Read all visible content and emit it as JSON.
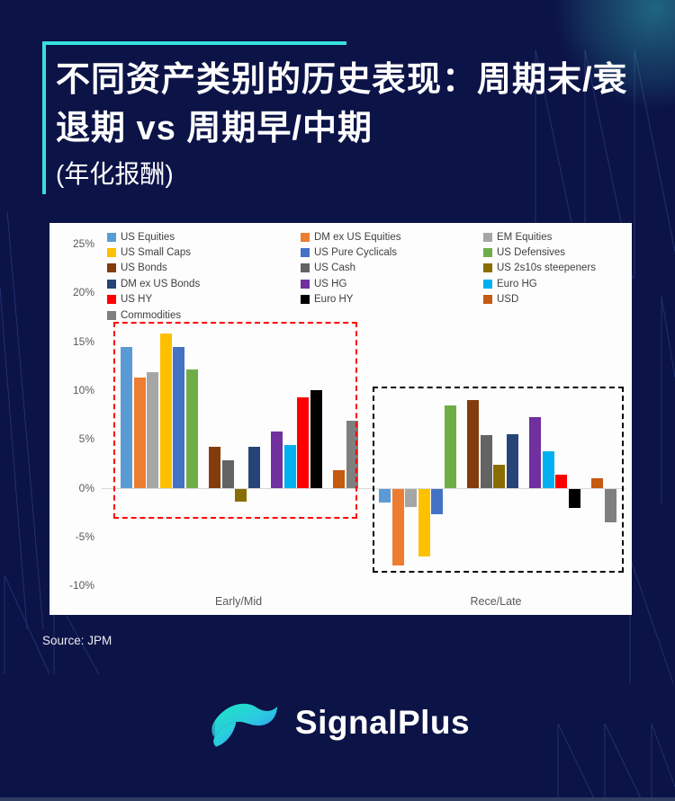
{
  "page": {
    "background_color": "#0C1347",
    "accent_color": "#35E1DE"
  },
  "title": {
    "line1": "不同资产类别的历史表现：周期末/衰",
    "line2": "退期 vs 周期早/中期",
    "line3": "(年化报酬)"
  },
  "source": "Source: JPM",
  "logo": {
    "text": "SignalPlus"
  },
  "chart_data": {
    "type": "bar",
    "title": "",
    "xlabel": "",
    "ylabel": "",
    "categories": [
      "Early/Mid",
      "Rece/Late"
    ],
    "y_ticks": [
      "25%",
      "20%",
      "15%",
      "10%",
      "5%",
      "0%",
      "-5%",
      "-10%"
    ],
    "ylim": [
      -10,
      25
    ],
    "grid": false,
    "legend_position": "top",
    "legend_columns": 3,
    "cluster_sizes": [
      6,
      4,
      4,
      2
    ],
    "series": [
      {
        "name": "US Equities",
        "color": "#5B9BD5",
        "values": [
          14.5,
          -1.4
        ]
      },
      {
        "name": "DM ex US Equities",
        "color": "#ED7D31",
        "values": [
          11.3,
          -7.8
        ]
      },
      {
        "name": "EM Equities",
        "color": "#A6A6A6",
        "values": [
          11.9,
          -1.8
        ]
      },
      {
        "name": "US Small Caps",
        "color": "#FFC000",
        "values": [
          15.8,
          -6.9
        ]
      },
      {
        "name": "US Pure Cyclicals",
        "color": "#4472C4",
        "values": [
          14.5,
          -2.6
        ]
      },
      {
        "name": "US Defensives",
        "color": "#70AD47",
        "values": [
          12.2,
          8.5
        ]
      },
      {
        "name": "US Bonds",
        "color": "#843C0C",
        "values": [
          4.2,
          9.0
        ]
      },
      {
        "name": "US Cash",
        "color": "#636363",
        "values": [
          2.9,
          5.4
        ]
      },
      {
        "name": "US 2s10s steepeners",
        "color": "#8A6D00",
        "values": [
          -1.3,
          2.4
        ]
      },
      {
        "name": "DM ex US Bonds",
        "color": "#264478",
        "values": [
          4.2,
          5.5
        ]
      },
      {
        "name": "US HG",
        "color": "#7030A0",
        "values": [
          5.8,
          7.3
        ]
      },
      {
        "name": "Euro HG",
        "color": "#00B0F0",
        "values": [
          4.4,
          3.8
        ]
      },
      {
        "name": "US HY",
        "color": "#FF0000",
        "values": [
          9.3,
          1.4
        ]
      },
      {
        "name": "Euro HY",
        "color": "#000000",
        "values": [
          10.0,
          -1.9
        ]
      },
      {
        "name": "USD",
        "color": "#C55A11",
        "values": [
          1.8,
          1.0
        ]
      },
      {
        "name": "Commodities",
        "color": "#7F7F7F",
        "values": [
          6.9,
          -3.4
        ]
      }
    ],
    "annotations": [
      {
        "target": "Early/Mid",
        "style": "dashed-box",
        "color": "#FF0000"
      },
      {
        "target": "Rece/Late",
        "style": "dashed-box",
        "color": "#000000"
      }
    ]
  }
}
